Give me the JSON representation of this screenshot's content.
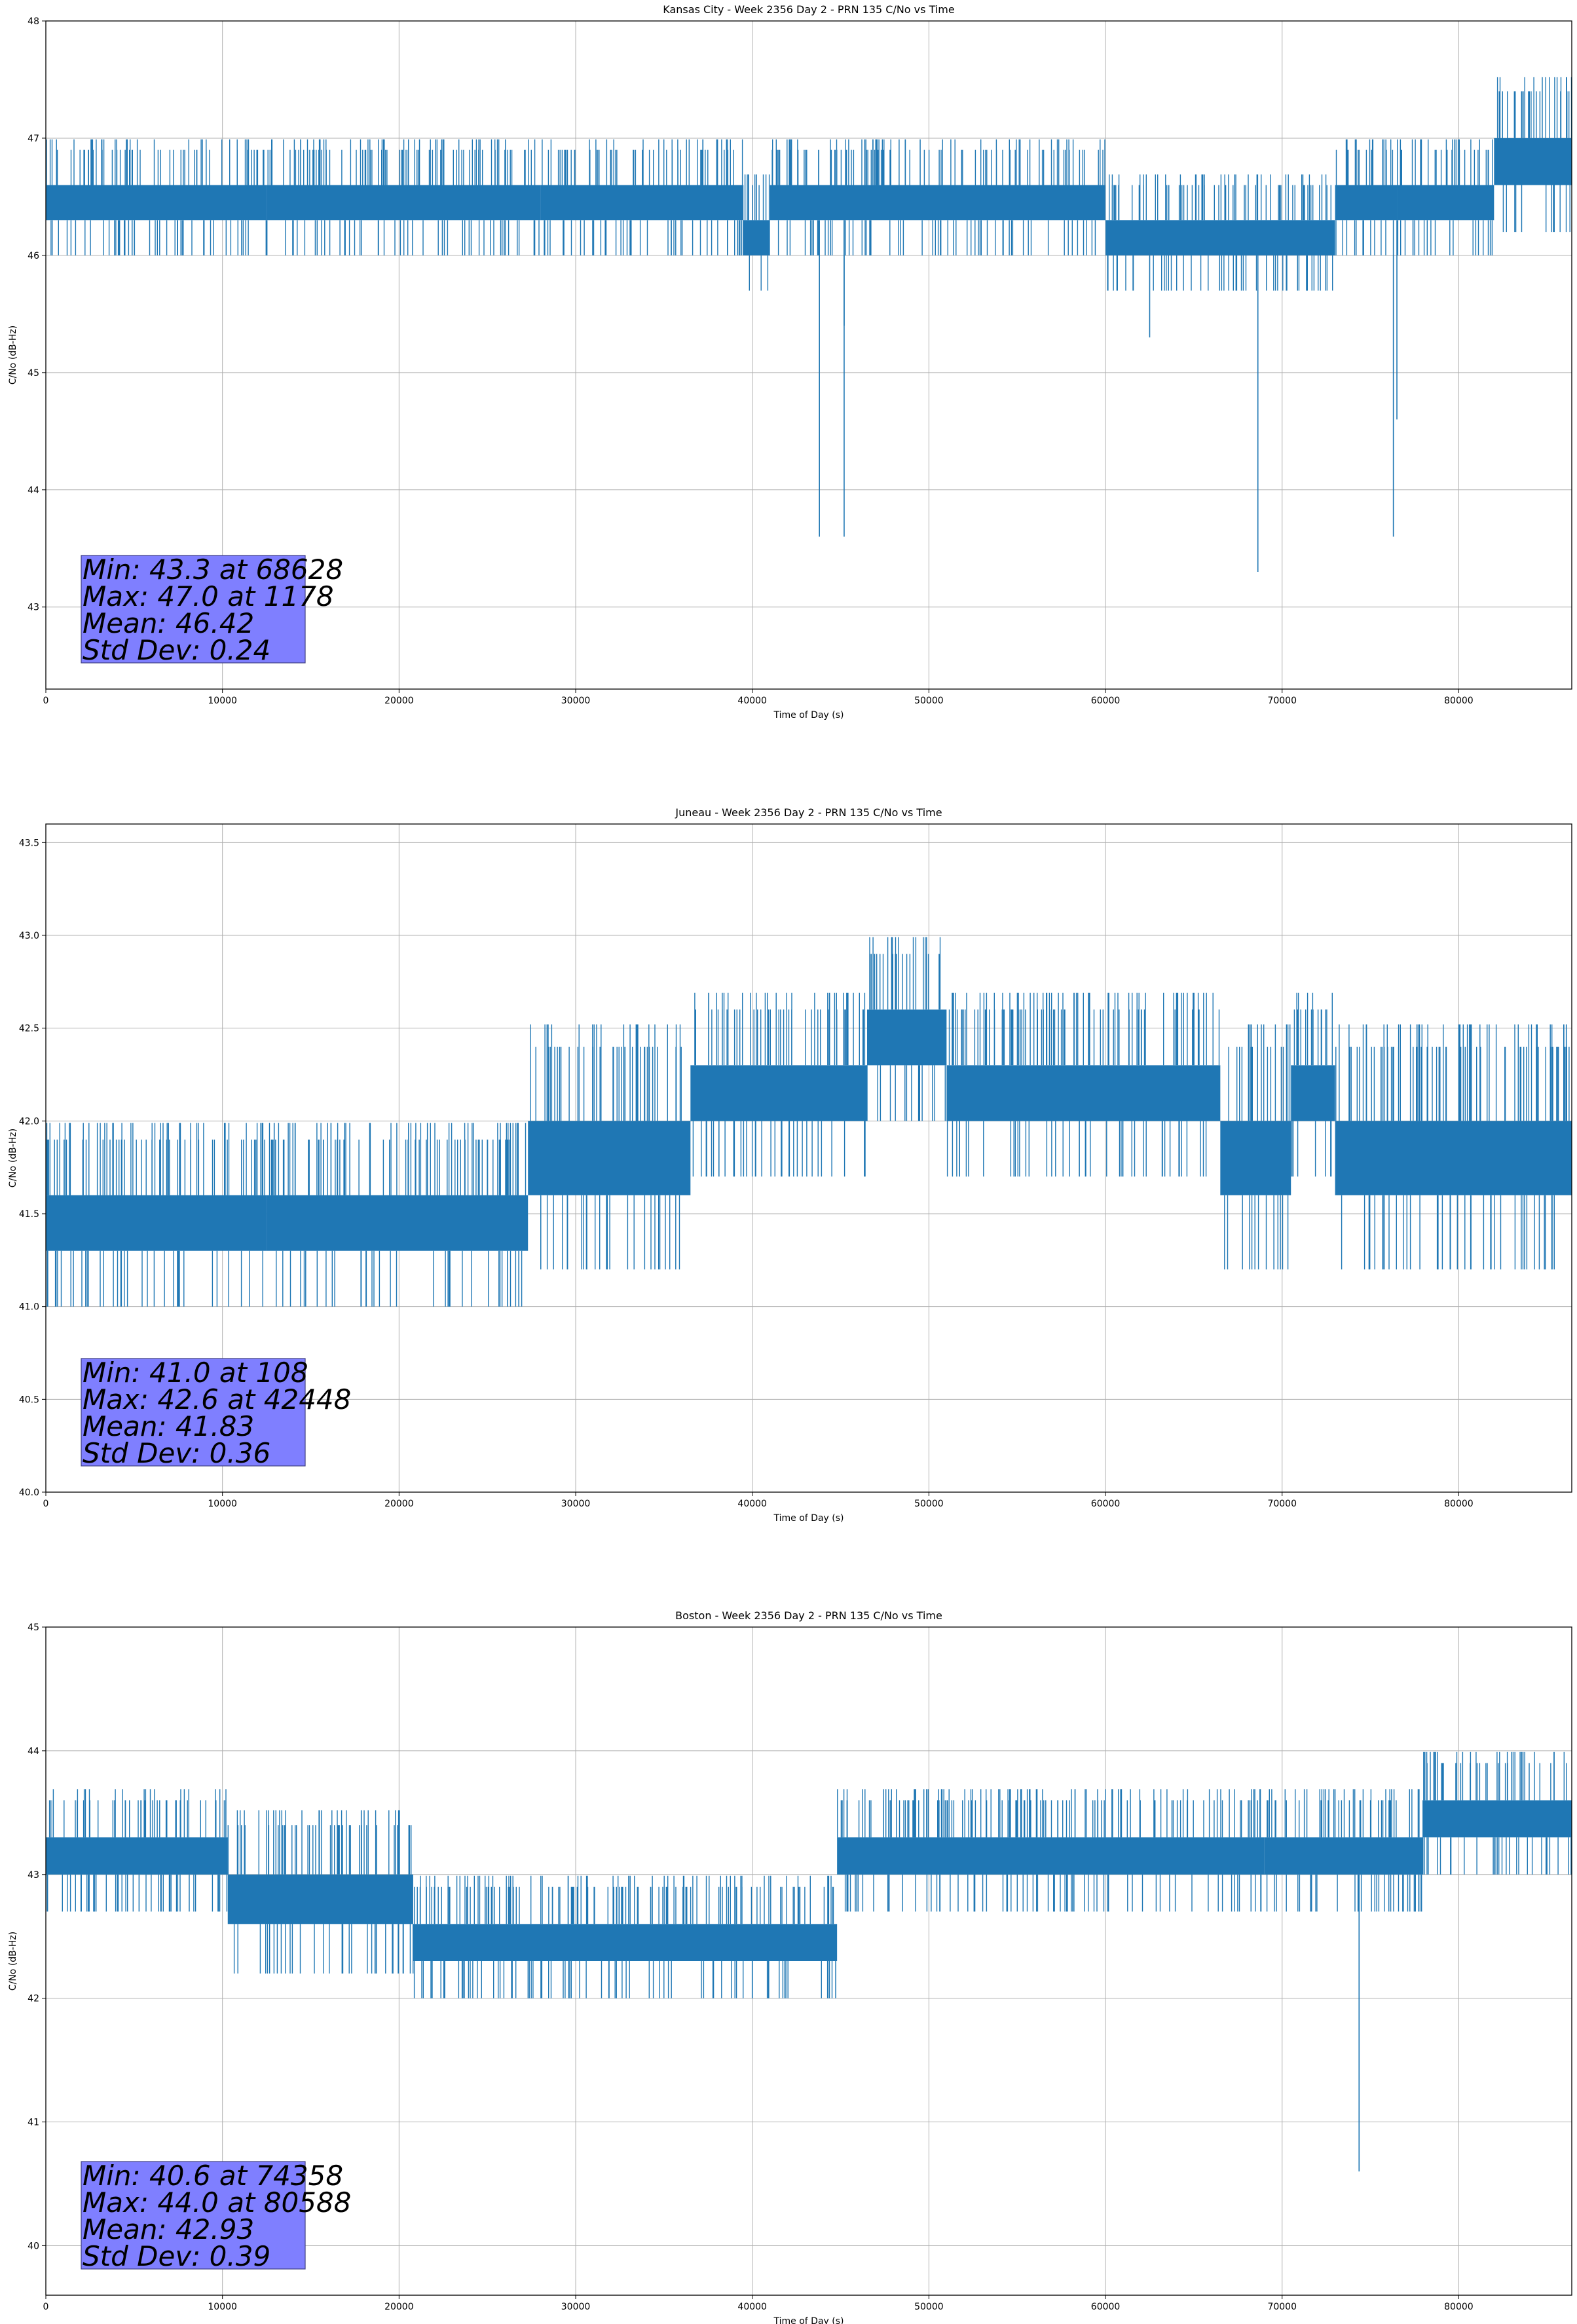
{
  "colors": {
    "series": "#1f77b4",
    "grid": "#b0b0b0",
    "stats_box_fill": "#7f7fff",
    "stats_box_edge": "#3f3f80"
  },
  "chart_data": [
    {
      "type": "line",
      "title": "Kansas City - Week 2356 Day 2 - PRN 135 C/No vs Time",
      "xlabel": "Time of Day (s)",
      "ylabel": "C/No (dB-Hz)",
      "xlim": [
        0,
        86400
      ],
      "ylim": [
        42.3,
        48.0
      ],
      "xticks": [
        0,
        10000,
        20000,
        30000,
        40000,
        50000,
        60000,
        70000,
        80000
      ],
      "xtick_labels": [
        "0",
        "10000",
        "20000",
        "30000",
        "40000",
        "50000",
        "60000",
        "70000",
        "80000"
      ],
      "yticks": [
        43,
        44,
        45,
        46,
        47,
        48
      ],
      "ytick_labels": [
        "43",
        "44",
        "45",
        "46",
        "47",
        "48"
      ],
      "grid": true,
      "band_segments": [
        {
          "x0": 0,
          "x1": 12500,
          "lo": 46.3,
          "hi": 46.6
        },
        {
          "x0": 12500,
          "x1": 28000,
          "lo": 46.3,
          "hi": 46.6
        },
        {
          "x0": 28000,
          "x1": 39500,
          "lo": 46.3,
          "hi": 46.6
        },
        {
          "x0": 39500,
          "x1": 41000,
          "lo": 46.0,
          "hi": 46.3
        },
        {
          "x0": 41000,
          "x1": 60000,
          "lo": 46.3,
          "hi": 46.6
        },
        {
          "x0": 60000,
          "x1": 73000,
          "lo": 46.0,
          "hi": 46.3
        },
        {
          "x0": 73000,
          "x1": 76500,
          "lo": 46.3,
          "hi": 46.6
        },
        {
          "x0": 76500,
          "x1": 82000,
          "lo": 46.3,
          "hi": 46.6
        },
        {
          "x0": 82000,
          "x1": 86400,
          "lo": 46.6,
          "hi": 47.0
        }
      ],
      "spikes": [
        {
          "x": 43800,
          "y": 43.6
        },
        {
          "x": 45200,
          "y": 43.6
        },
        {
          "x": 45200,
          "y": 45.4
        },
        {
          "x": 62500,
          "y": 45.3
        },
        {
          "x": 68628,
          "y": 43.3
        },
        {
          "x": 76300,
          "y": 43.6
        },
        {
          "x": 76500,
          "y": 44.6
        }
      ],
      "stats": [
        "Min: 43.3 at 68628",
        "Max: 47.0 at 1178",
        "Mean: 46.42",
        "Std Dev: 0.24"
      ]
    },
    {
      "type": "line",
      "title": "Juneau - Week 2356 Day 2 - PRN 135 C/No vs Time",
      "xlabel": "Time of Day (s)",
      "ylabel": "C/No (dB-Hz)",
      "xlim": [
        0,
        86400
      ],
      "ylim": [
        40.0,
        43.6
      ],
      "xticks": [
        0,
        10000,
        20000,
        30000,
        40000,
        50000,
        60000,
        70000,
        80000
      ],
      "xtick_labels": [
        "0",
        "10000",
        "20000",
        "30000",
        "40000",
        "50000",
        "60000",
        "70000",
        "80000"
      ],
      "yticks": [
        40.0,
        40.5,
        41.0,
        41.5,
        42.0,
        42.5,
        43.0,
        43.5
      ],
      "ytick_labels": [
        "40.0",
        "40.5",
        "41.0",
        "41.5",
        "42.0",
        "42.5",
        "43.0",
        "43.5"
      ],
      "grid": true,
      "band_segments": [
        {
          "x0": 0,
          "x1": 12500,
          "lo": 41.3,
          "hi": 41.6
        },
        {
          "x0": 12500,
          "x1": 27300,
          "lo": 41.3,
          "hi": 41.6
        },
        {
          "x0": 27300,
          "x1": 36500,
          "lo": 41.6,
          "hi": 42.0
        },
        {
          "x0": 36500,
          "x1": 46500,
          "lo": 42.0,
          "hi": 42.3
        },
        {
          "x0": 46500,
          "x1": 51000,
          "lo": 42.3,
          "hi": 42.6
        },
        {
          "x0": 51000,
          "x1": 66500,
          "lo": 42.0,
          "hi": 42.3
        },
        {
          "x0": 66500,
          "x1": 70500,
          "lo": 41.6,
          "hi": 42.0
        },
        {
          "x0": 70500,
          "x1": 73000,
          "lo": 42.0,
          "hi": 42.3
        },
        {
          "x0": 73000,
          "x1": 86400,
          "lo": 41.6,
          "hi": 42.0
        }
      ],
      "spikes": [
        {
          "x": 108,
          "y": 41.0
        }
      ],
      "stats": [
        "Min: 41.0 at 108",
        "Max: 42.6 at 42448",
        "Mean: 41.83",
        "Std Dev: 0.36"
      ]
    },
    {
      "type": "line",
      "title": "Boston - Week 2356 Day 2 - PRN 135 C/No vs Time",
      "xlabel": "Time of Day (s)",
      "ylabel": "C/No (dB-Hz)",
      "xlim": [
        0,
        86400
      ],
      "ylim": [
        39.6,
        45.0
      ],
      "xticks": [
        0,
        10000,
        20000,
        30000,
        40000,
        50000,
        60000,
        70000,
        80000
      ],
      "xtick_labels": [
        "0",
        "10000",
        "20000",
        "30000",
        "40000",
        "50000",
        "60000",
        "70000",
        "80000"
      ],
      "yticks": [
        40,
        41,
        42,
        43,
        44,
        45
      ],
      "ytick_labels": [
        "40",
        "41",
        "42",
        "43",
        "44",
        "45"
      ],
      "grid": true,
      "band_segments": [
        {
          "x0": 0,
          "x1": 10300,
          "lo": 43.0,
          "hi": 43.3
        },
        {
          "x0": 10300,
          "x1": 20800,
          "lo": 42.6,
          "hi": 43.0
        },
        {
          "x0": 20800,
          "x1": 44800,
          "lo": 42.3,
          "hi": 42.6
        },
        {
          "x0": 44800,
          "x1": 69000,
          "lo": 43.0,
          "hi": 43.3
        },
        {
          "x0": 69000,
          "x1": 78000,
          "lo": 43.0,
          "hi": 43.3
        },
        {
          "x0": 78000,
          "x1": 86400,
          "lo": 43.3,
          "hi": 43.6
        }
      ],
      "spikes": [
        {
          "x": 74358,
          "y": 40.6
        }
      ],
      "stats": [
        "Min: 40.6 at 74358",
        "Max: 44.0 at 80588",
        "Mean: 42.93",
        "Std Dev: 0.39"
      ]
    }
  ]
}
